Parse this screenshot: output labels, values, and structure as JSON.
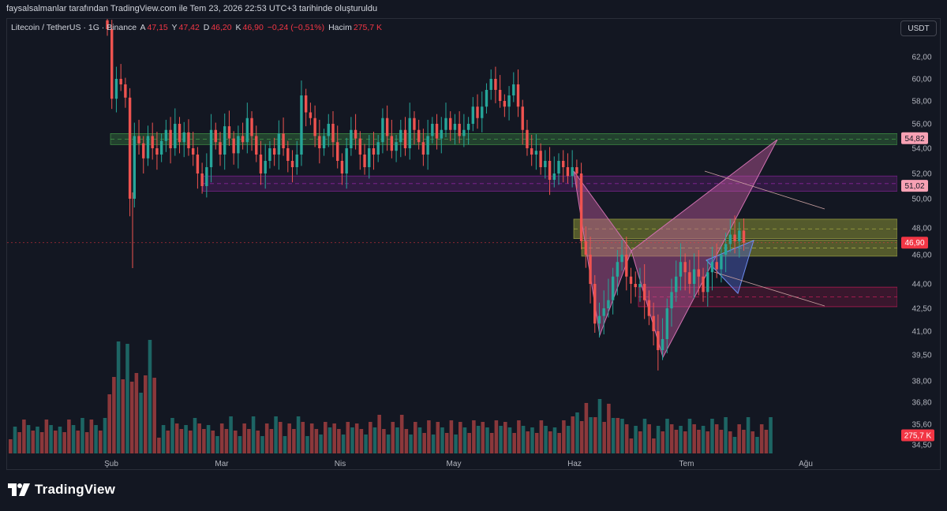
{
  "caption": "faysalsalmanlar tarafından TradingView.com ile Tem 23, 2026 22:53 UTC+3 tarihinde oluşturuldu",
  "legend": {
    "symbol": "Litecoin / TetherUS · 1G · Binance",
    "open_label": "A",
    "open_value": "47,15",
    "high_label": "Y",
    "high_value": "47,42",
    "low_label": "D",
    "low_value": "46,20",
    "close_label": "K",
    "close_value": "46,90",
    "change": "−0,24 (−0,51%)",
    "volume_label": "Hacim",
    "volume_value": "275,7 K"
  },
  "currency_button": "USDT",
  "logo_text": "TradingView",
  "colors": {
    "bg": "#131722",
    "up": "#26a69a",
    "down": "#ef5350",
    "grid": "#1e222d"
  },
  "chart_data": {
    "type": "candlestick",
    "symbol": "Litecoin / TetherUS",
    "interval": "1G",
    "exchange": "Binance",
    "price_axis_labels": [
      "62,00",
      "60,00",
      "58,00",
      "56,00",
      "54,00",
      "52,00",
      "50,00",
      "48,00",
      "46,00",
      "44,00",
      "42,50",
      "41,00",
      "39,50",
      "38,00",
      "36,80",
      "35,60",
      "34,50"
    ],
    "time_axis_labels": [
      "Şub",
      "Mar",
      "Nis",
      "May",
      "Haz",
      "Tem",
      "Ağu"
    ],
    "price_badges": [
      {
        "value": "54,82",
        "color": "#f7a1b4"
      },
      {
        "value": "51,02",
        "color": "#f7a1b4"
      },
      {
        "value": "46,90",
        "color": "#f23645"
      },
      {
        "value": "275,7 K",
        "color": "#f23645"
      }
    ],
    "ohlc_last": {
      "open": 47.15,
      "high": 47.42,
      "low": 46.2,
      "close": 46.9
    },
    "change_last": {
      "abs": -0.24,
      "pct": -0.51
    },
    "volume_last": "275,7 K",
    "closes": [
      64.5,
      58.2,
      60.0,
      59.5,
      58.3,
      50.0,
      55.0,
      54.4,
      53.2,
      55.0,
      54.0,
      53.5,
      54.6,
      55.5,
      54.0,
      56.0,
      54.5,
      55.3,
      54.0,
      53.5,
      52.0,
      51.0,
      52.5,
      55.5,
      54.5,
      53.5,
      55.8,
      54.8,
      53.6,
      55.0,
      54.5,
      56.5,
      55.0,
      53.5,
      52.0,
      53.0,
      54.0,
      53.5,
      55.2,
      54.0,
      53.0,
      52.5,
      53.5,
      58.5,
      57.0,
      56.5,
      55.0,
      54.0,
      55.0,
      56.0,
      54.5,
      53.0,
      52.0,
      54.0,
      55.5,
      54.8,
      53.5,
      52.5,
      54.0,
      53.5,
      54.5,
      56.5,
      55.0,
      53.8,
      54.5,
      55.5,
      54.0,
      56.5,
      55.5,
      54.5,
      53.5,
      55.0,
      56.0,
      54.8,
      55.5,
      56.5,
      55.5,
      56.0,
      55.0,
      55.5,
      56.0,
      57.5,
      56.5,
      57.5,
      59.0,
      60.0,
      59.0,
      58.0,
      57.5,
      58.5,
      59.5,
      57.5,
      55.5,
      54.0,
      53.5,
      53.8,
      52.5,
      53.0,
      51.5,
      52.0,
      53.0,
      52.5,
      51.8,
      52.5,
      52.0,
      47.0,
      46.0,
      44.0,
      41.5,
      42.0,
      42.5,
      43.0,
      44.5,
      45.5,
      46.0,
      44.5,
      44.0,
      43.8,
      44.0,
      43.0,
      42.0,
      41.0,
      39.8,
      40.5,
      42.5,
      43.5,
      44.5,
      45.5,
      44.8,
      44.0,
      45.0,
      44.5,
      43.5,
      44.8,
      45.5,
      45.0,
      46.0,
      46.8,
      47.5,
      47.0,
      47.8,
      46.9
    ],
    "annotations": [
      "bullish-bat harmonic pattern (XABCD)",
      "horizontal zones: green supply 54,3–55,2; purple 50,6–51,8; olive 47,2–48,6 and 45,9–47,2; pink 42,6–43,8"
    ]
  }
}
